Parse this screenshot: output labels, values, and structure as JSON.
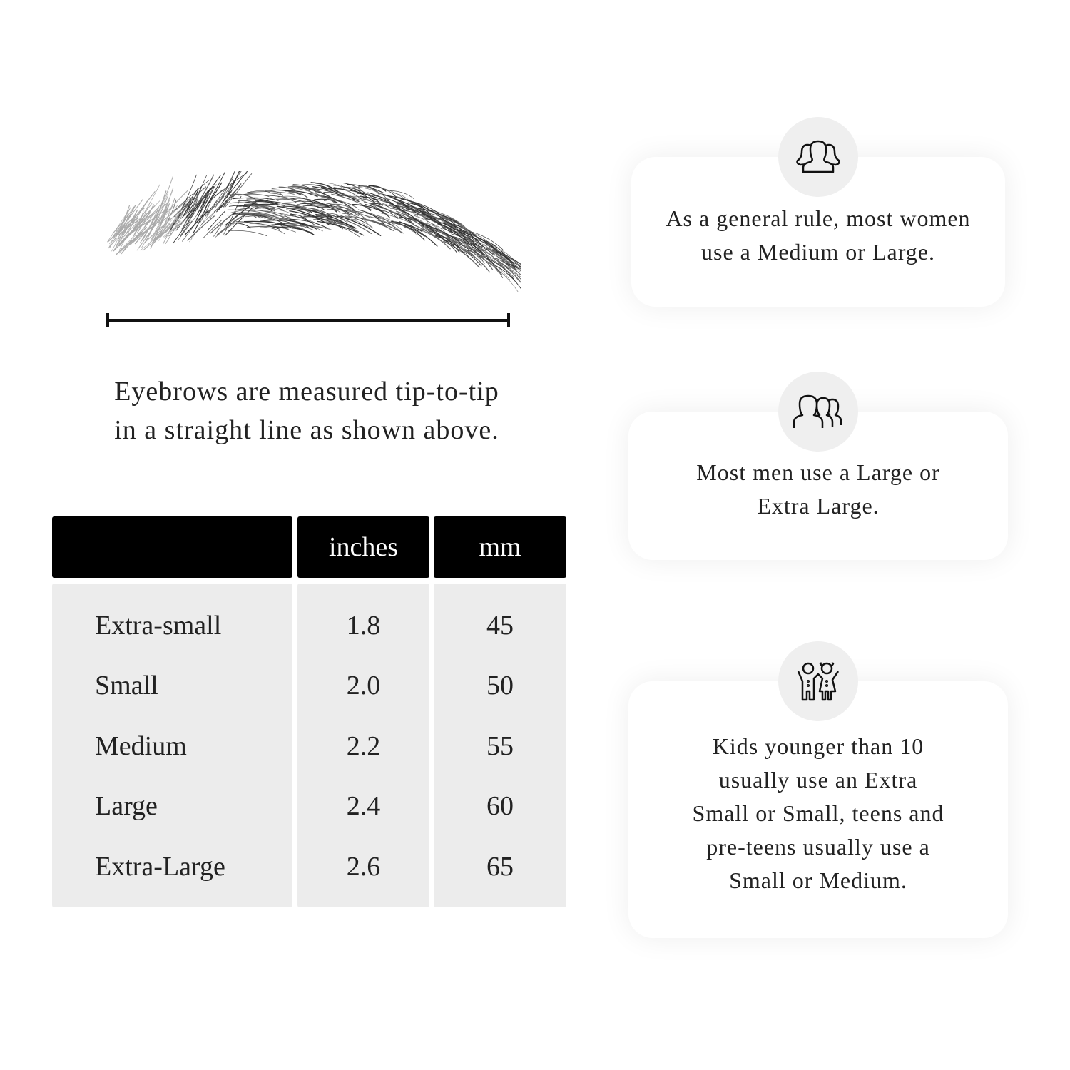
{
  "measurement": {
    "caption_line1": "Eyebrows are measured tip-to-tip",
    "caption_line2": "in a straight line as shown above."
  },
  "table": {
    "headers": [
      "",
      "inches",
      "mm"
    ],
    "rows": [
      {
        "size": "Extra-small",
        "inches": "1.8",
        "mm": "45"
      },
      {
        "size": "Small",
        "inches": "2.0",
        "mm": "50"
      },
      {
        "size": "Medium",
        "inches": "2.2",
        "mm": "55"
      },
      {
        "size": "Large",
        "inches": "2.4",
        "mm": "60"
      },
      {
        "size": "Extra-Large",
        "inches": "2.6",
        "mm": "65"
      }
    ]
  },
  "cards": [
    {
      "icon": "women-group-icon",
      "lines": [
        "As a general rule, most women",
        "use a Medium or Large."
      ]
    },
    {
      "icon": "men-group-icon",
      "lines": [
        "Most men use a Large or",
        "Extra Large."
      ]
    },
    {
      "icon": "kids-icon",
      "lines": [
        "Kids younger than 10",
        "usually use an Extra",
        "Small or Small, teens and",
        "pre-teens usually use a",
        "Small or Medium."
      ]
    }
  ]
}
